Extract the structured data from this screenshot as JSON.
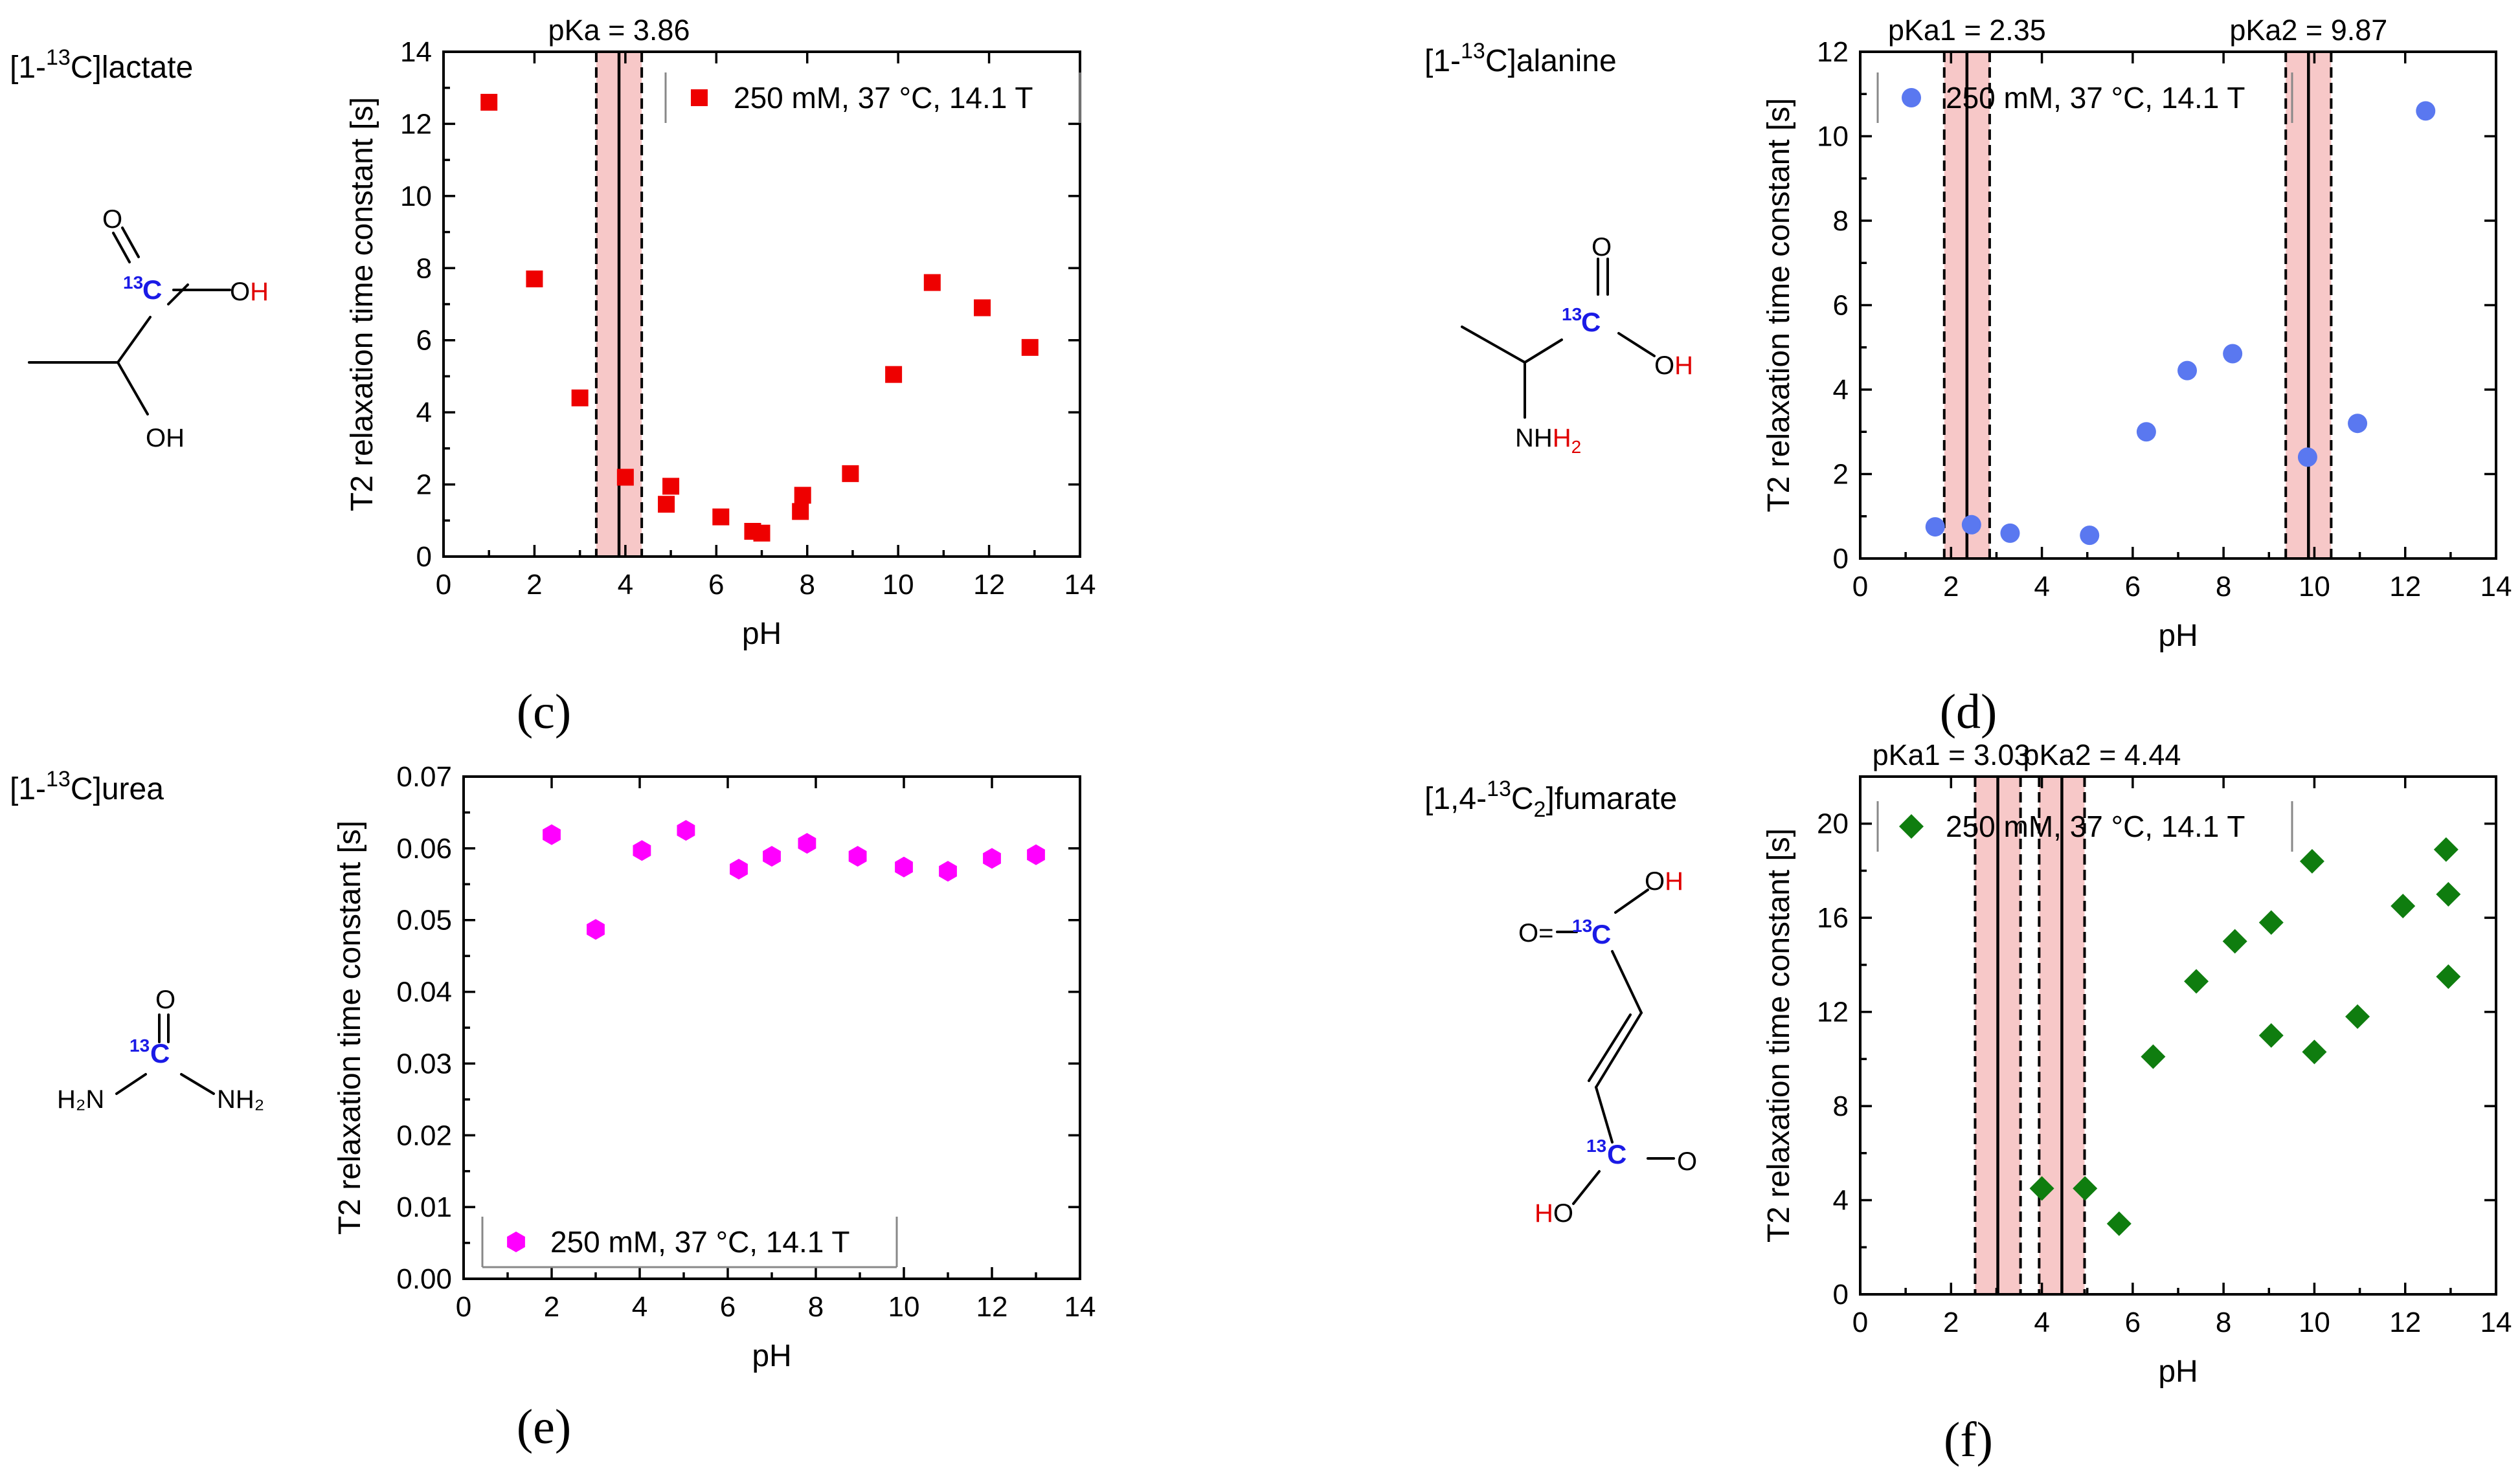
{
  "colors": {
    "lactate": "#ee0000",
    "alanine": "#5a78f0",
    "urea": "#ff00ff",
    "fumarate": "#0f7d0f",
    "pka_band": "#f7c8c8",
    "label13c": "#1a1ae6",
    "hetero_red": "#e00000"
  },
  "chart_data": [
    {
      "id": "c",
      "type": "scatter",
      "panel_label": "(c)",
      "compound": "[1-13C]lactate",
      "compound_parts": {
        "pre": "[1-",
        "sup": "13",
        "post": "C]lactate"
      },
      "legend": "250 mM, 37 °C, 14.1 T",
      "xlabel": "pH",
      "ylabel": "T2 relaxation time constant [s]",
      "xlim": [
        0,
        14
      ],
      "ylim": [
        0,
        14
      ],
      "xticks": [
        0,
        2,
        4,
        6,
        8,
        10,
        12,
        14
      ],
      "yticks": [
        0,
        2,
        4,
        6,
        8,
        10,
        12,
        14
      ],
      "ytick_labels": [
        "0",
        "2",
        "4",
        "6",
        "8",
        "10",
        "12",
        "14"
      ],
      "marker": "square",
      "color": "#ee0000",
      "pka": [
        {
          "label": "pKa = 3.86",
          "value": 3.86,
          "band": [
            3.36,
            4.36
          ]
        }
      ],
      "x": [
        1.0,
        2.0,
        3.0,
        4.0,
        4.9,
        5.0,
        6.1,
        6.8,
        7.0,
        7.85,
        7.9,
        8.95,
        9.9,
        10.75,
        11.85,
        12.9
      ],
      "y": [
        12.6,
        7.7,
        4.4,
        2.2,
        1.45,
        1.95,
        1.1,
        0.7,
        0.65,
        1.25,
        1.7,
        2.3,
        5.05,
        7.6,
        6.9,
        5.8
      ]
    },
    {
      "id": "d",
      "type": "scatter",
      "panel_label": "(d)",
      "compound": "[1-13C]alanine",
      "compound_parts": {
        "pre": "[1-",
        "sup": "13",
        "post": "C]alanine"
      },
      "legend": "250 mM, 37 °C, 14.1 T",
      "xlabel": "pH",
      "ylabel": "T2 relaxation time constant [s]",
      "xlim": [
        0,
        14
      ],
      "ylim": [
        0,
        12
      ],
      "xticks": [
        0,
        2,
        4,
        6,
        8,
        10,
        12,
        14
      ],
      "yticks": [
        0,
        2,
        4,
        6,
        8,
        10,
        12
      ],
      "ytick_labels": [
        "0",
        "2",
        "4",
        "6",
        "8",
        "10",
        "12"
      ],
      "marker": "circle",
      "color": "#5a78f0",
      "pka": [
        {
          "label": "pKa1 = 2.35",
          "value": 2.35,
          "band": [
            1.85,
            2.85
          ]
        },
        {
          "label": "pKa2 = 9.87",
          "value": 9.87,
          "band": [
            9.37,
            10.37
          ]
        }
      ],
      "x": [
        1.65,
        2.45,
        3.3,
        5.05,
        6.3,
        7.2,
        8.2,
        9.85,
        10.95,
        12.45
      ],
      "y": [
        0.75,
        0.8,
        0.6,
        0.55,
        3.0,
        4.45,
        4.85,
        2.4,
        3.2,
        10.6
      ]
    },
    {
      "id": "e",
      "type": "scatter",
      "panel_label": "(e)",
      "compound": "[1-13C]urea",
      "compound_parts": {
        "pre": "[1-",
        "sup": "13",
        "post": "C]urea"
      },
      "legend": "250 mM, 37 °C, 14.1 T",
      "xlabel": "pH",
      "ylabel": "T2 relaxation time constant [s]",
      "xlim": [
        0,
        14
      ],
      "ylim": [
        0,
        0.07
      ],
      "xticks": [
        0,
        2,
        4,
        6,
        8,
        10,
        12,
        14
      ],
      "yticks": [
        0,
        0.01,
        0.02,
        0.03,
        0.04,
        0.05,
        0.06,
        0.07
      ],
      "ytick_labels": [
        "0.00",
        "0.01",
        "0.02",
        "0.03",
        "0.04",
        "0.05",
        "0.06",
        "0.07"
      ],
      "marker": "hexagon",
      "color": "#ff00ff",
      "pka": [],
      "x": [
        2.0,
        3.0,
        4.05,
        5.05,
        6.25,
        7.0,
        7.8,
        8.95,
        10.0,
        11.0,
        12.0,
        13.0
      ],
      "y": [
        0.0619,
        0.0487,
        0.0597,
        0.0625,
        0.0571,
        0.0589,
        0.0607,
        0.0589,
        0.0574,
        0.0568,
        0.0586,
        0.0591
      ]
    },
    {
      "id": "f",
      "type": "scatter",
      "panel_label": "(f)",
      "compound": "[1,4-13C2]fumarate",
      "compound_parts": {
        "pre": "[1,4-",
        "sup": "13",
        "post": "C",
        "sub": "2",
        "post2": "]fumarate"
      },
      "legend": "250 mM, 37 °C, 14.1 T",
      "xlabel": "pH",
      "ylabel": "T2 relaxation time constant [s]",
      "xlim": [
        0,
        14
      ],
      "ylim": [
        0,
        22
      ],
      "xticks": [
        0,
        2,
        4,
        6,
        8,
        10,
        12,
        14
      ],
      "yticks": [
        0,
        4,
        8,
        12,
        16,
        20
      ],
      "ytick_labels": [
        "0",
        "4",
        "8",
        "12",
        "16",
        "20"
      ],
      "marker": "diamond",
      "color": "#0f7d0f",
      "pka": [
        {
          "label": "pKa1 = 3.03",
          "value": 3.03,
          "band": [
            2.53,
            3.53
          ]
        },
        {
          "label": "pKa2 = 4.44",
          "value": 4.44,
          "band": [
            3.94,
            4.94
          ]
        }
      ],
      "x": [
        4.0,
        4.95,
        5.7,
        6.45,
        7.4,
        8.25,
        9.05,
        9.05,
        9.95,
        10.0,
        10.95,
        11.95,
        12.9,
        12.95,
        12.95
      ],
      "y": [
        4.5,
        4.5,
        3.0,
        10.1,
        13.3,
        15.0,
        15.8,
        11.0,
        18.4,
        10.3,
        11.8,
        16.5,
        18.9,
        17.0,
        13.5
      ]
    }
  ],
  "molecules": {
    "c13": "13",
    "c13_atom": "C",
    "O": "O",
    "OH": "OH",
    "HO": "HO",
    "O_eq": "O=",
    "NH": "NH",
    "H2": "H",
    "sub2": "2",
    "H2N": "H₂N",
    "NH2": "NH₂"
  }
}
